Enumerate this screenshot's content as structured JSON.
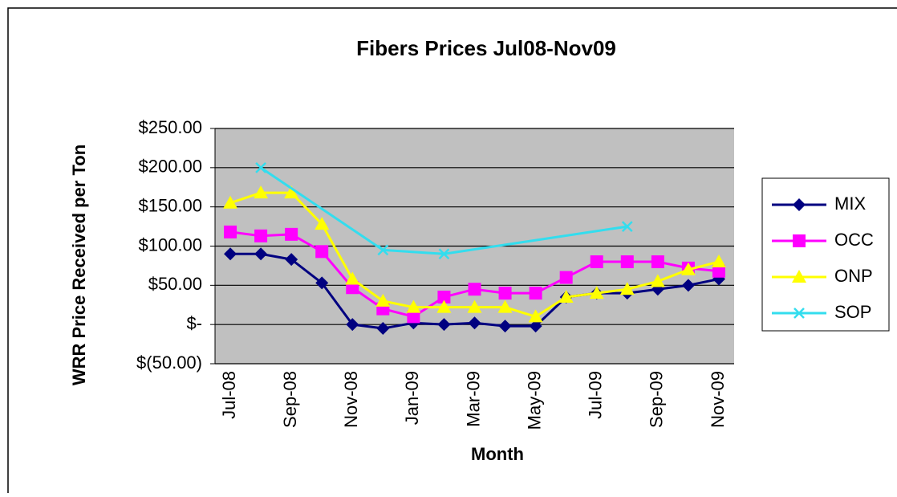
{
  "chart_data": {
    "type": "line",
    "title": "Fibers Prices Jul08-Nov09",
    "x_label": "Month",
    "y_label": "WRR Price Received per Ton",
    "categories": [
      "Jul-08",
      null,
      "Sep-08",
      null,
      "Nov-08",
      null,
      "Jan-09",
      null,
      "Mar-09",
      null,
      "May-09",
      null,
      "Jul-09",
      null,
      "Sep-09",
      null,
      "Nov-09"
    ],
    "ylim": [
      -50,
      250
    ],
    "yticks": [
      {
        "value": -50,
        "label": "$(50.00)"
      },
      {
        "value": 0,
        "label": "$-"
      },
      {
        "value": 50,
        "label": "$50.00"
      },
      {
        "value": 100,
        "label": "$100.00"
      },
      {
        "value": 150,
        "label": "$150.00"
      },
      {
        "value": 200,
        "label": "$200.00"
      },
      {
        "value": 250,
        "label": "$250.00"
      }
    ],
    "grid": true,
    "span_gaps": true,
    "legend": "right",
    "series": [
      {
        "name": "MIX",
        "color": "#000080",
        "marker": "diamond",
        "values": [
          90,
          90,
          83,
          53,
          0,
          -5,
          2,
          0,
          2,
          -2,
          -2,
          35,
          40,
          40,
          45,
          50,
          58
        ]
      },
      {
        "name": "OCC",
        "color": "#ff00ff",
        "marker": "square",
        "values": [
          118,
          113,
          115,
          93,
          47,
          20,
          10,
          35,
          45,
          40,
          40,
          60,
          80,
          80,
          80,
          72,
          68
        ]
      },
      {
        "name": "ONP",
        "color": "#ffff00",
        "marker": "triangle",
        "values": [
          155,
          168,
          168,
          128,
          58,
          30,
          22,
          22,
          22,
          22,
          10,
          35,
          40,
          45,
          55,
          70,
          80
        ]
      },
      {
        "name": "SOP",
        "color": "#33ddee",
        "marker": "x",
        "values": [
          null,
          200,
          null,
          null,
          null,
          95,
          null,
          90,
          null,
          null,
          null,
          null,
          null,
          125,
          null,
          null,
          null
        ]
      }
    ]
  }
}
